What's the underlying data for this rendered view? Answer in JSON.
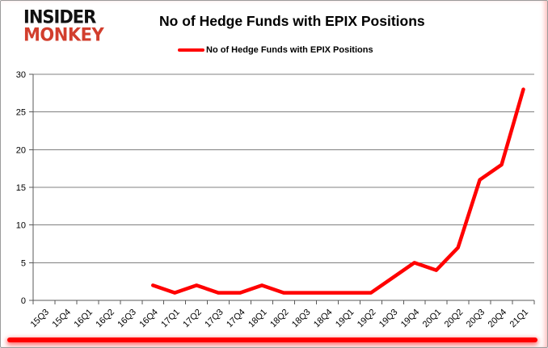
{
  "logo": {
    "line1": "INSIDER",
    "line2": "MONKEY"
  },
  "header": {
    "title": "No of Hedge Funds with EPIX Positions"
  },
  "legend": {
    "label": "No of Hedge Funds with EPIX Positions"
  },
  "colors": {
    "series_red": "#ff0000",
    "logo_red": "#d23e2d",
    "grid_gray": "#808080",
    "axis_gray": "#595959",
    "divider_red": "#fe0000"
  },
  "chart_data": {
    "type": "line",
    "title": "No of Hedge Funds with EPIX Positions",
    "categories": [
      "15Q3",
      "15Q4",
      "16Q1",
      "16Q2",
      "16Q3",
      "16Q4",
      "17Q1",
      "17Q2",
      "17Q3",
      "17Q4",
      "18Q1",
      "18Q2",
      "18Q3",
      "18Q4",
      "19Q1",
      "19Q2",
      "19Q3",
      "19Q4",
      "20Q1",
      "20Q2",
      "20Q3",
      "20Q4",
      "21Q1"
    ],
    "series": [
      {
        "name": "No of Hedge Funds with EPIX Positions",
        "color": "#ff0000",
        "values": [
          null,
          null,
          null,
          null,
          null,
          2,
          1,
          2,
          1,
          1,
          2,
          1,
          1,
          1,
          1,
          1,
          3,
          5,
          4,
          7,
          16,
          18,
          28
        ]
      }
    ],
    "xlabel": "",
    "ylabel": "",
    "ylim": [
      0,
      30
    ],
    "yticks": [
      0,
      5,
      10,
      15,
      20,
      25,
      30
    ],
    "grid": true,
    "legend_position": "top-center"
  }
}
